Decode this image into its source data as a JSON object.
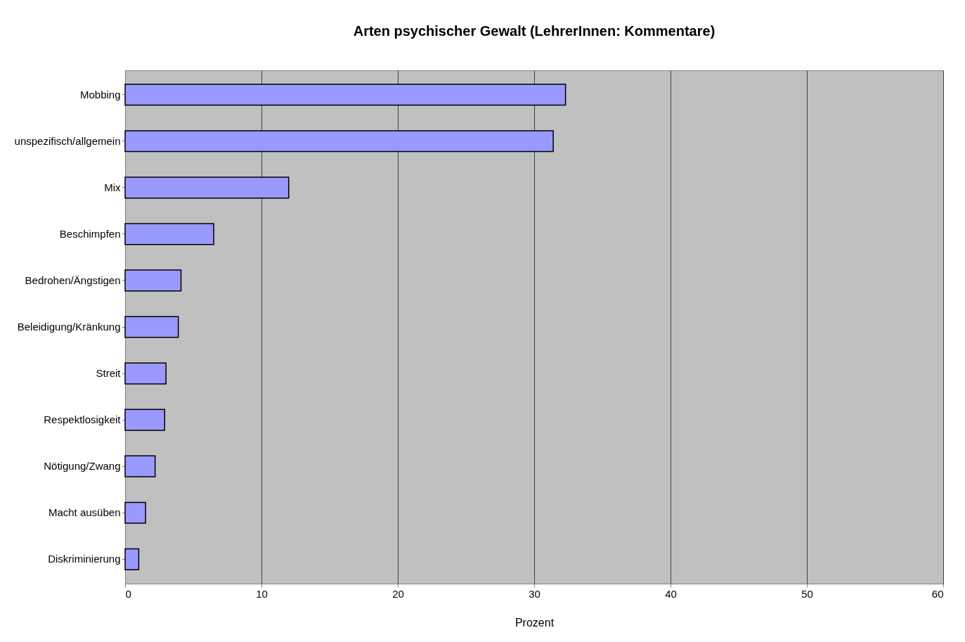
{
  "chart_data": {
    "type": "bar",
    "orientation": "horizontal",
    "title": "Arten psychischer Gewalt (LehrerInnen: Kommentare)",
    "xlabel": "Prozent",
    "categories": [
      "Mobbing",
      "unspezifisch/allgemein",
      "Mix",
      "Beschimpfen",
      "Bedrohen/Ängstigen",
      "Beleidigung/Kränkung",
      "Streit",
      "Respektlosigkeit",
      "Nötigung/Zwang",
      "Macht ausüben",
      "Diskriminierung"
    ],
    "values": [
      32.3,
      31.4,
      12.0,
      6.5,
      4.1,
      3.9,
      3.0,
      2.9,
      2.2,
      1.5,
      1.0
    ],
    "color": "#9999ff",
    "xlim": [
      0,
      60
    ],
    "xticks": [
      0,
      10,
      20,
      30,
      40,
      50,
      60
    ],
    "grid": "x"
  }
}
